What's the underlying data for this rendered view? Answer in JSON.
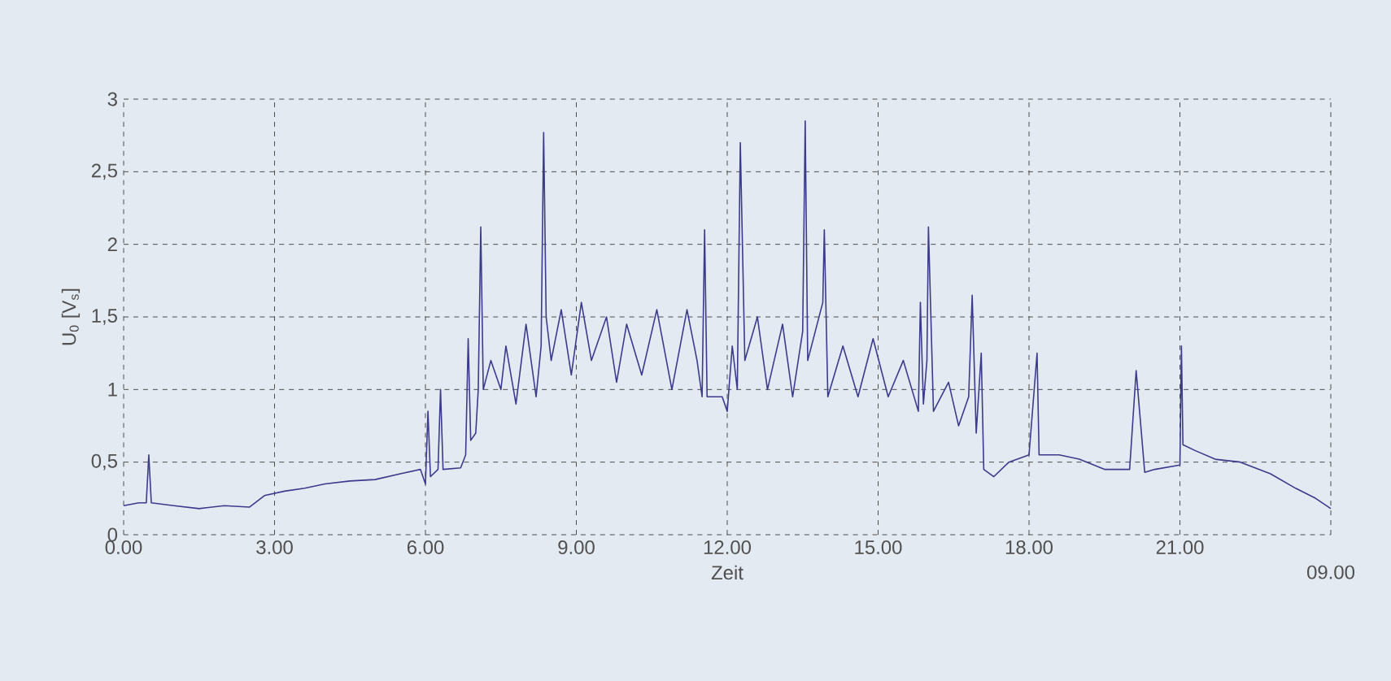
{
  "chart_data": {
    "type": "line",
    "xlabel": "Zeit",
    "ylabel": "U$_{0}$ [V$_{s}$]",
    "xlim": [
      0,
      24
    ],
    "ylim": [
      0,
      3
    ],
    "xticks": [
      {
        "value": 0,
        "label": "0.00"
      },
      {
        "value": 3,
        "label": "3.00"
      },
      {
        "value": 6,
        "label": "6.00"
      },
      {
        "value": 9,
        "label": "9.00"
      },
      {
        "value": 12,
        "label": "12.00"
      },
      {
        "value": 15,
        "label": "15.00"
      },
      {
        "value": 18,
        "label": "18.00"
      },
      {
        "value": 21,
        "label": "21.00"
      },
      {
        "value": 24,
        "label": null
      }
    ],
    "annotations": [
      "09.00"
    ],
    "yticks": [
      0,
      {
        "value": 0.5,
        "label": "0,5"
      },
      1,
      {
        "value": 1.5,
        "label": "1,5"
      },
      2,
      {
        "value": 2.5,
        "label": "2,5"
      },
      3
    ],
    "grid": true,
    "line_style": "solid",
    "series": [
      {
        "color": "#3c3a8c",
        "x": [
          0.0,
          0.3,
          0.45,
          0.5,
          0.55,
          1.0,
          1.5,
          2.0,
          2.5,
          2.8,
          3.2,
          3.6,
          4.0,
          4.5,
          5.0,
          5.5,
          5.9,
          6.0,
          6.05,
          6.1,
          6.25,
          6.3,
          6.35,
          6.7,
          6.8,
          6.85,
          6.9,
          7.0,
          7.05,
          7.1,
          7.15,
          7.3,
          7.5,
          7.6,
          7.8,
          8.0,
          8.2,
          8.3,
          8.35,
          8.4,
          8.5,
          8.7,
          8.9,
          9.1,
          9.3,
          9.6,
          9.8,
          10.0,
          10.3,
          10.6,
          10.9,
          11.2,
          11.4,
          11.5,
          11.55,
          11.6,
          11.9,
          12.0,
          12.1,
          12.2,
          12.26,
          12.35,
          12.6,
          12.8,
          13.1,
          13.3,
          13.5,
          13.55,
          13.6,
          13.9,
          13.93,
          14.0,
          14.3,
          14.6,
          14.9,
          15.2,
          15.5,
          15.8,
          15.84,
          15.9,
          15.97,
          16.0,
          16.1,
          16.4,
          16.6,
          16.8,
          16.87,
          16.95,
          17.05,
          17.1,
          17.3,
          17.6,
          18.0,
          18.16,
          18.2,
          18.6,
          19.0,
          19.5,
          20.0,
          20.13,
          20.3,
          20.5,
          21.0,
          21.03,
          21.06,
          21.3,
          21.7,
          22.2,
          22.8,
          23.3,
          23.7,
          24.0
        ],
        "values": [
          0.2,
          0.22,
          0.22,
          0.55,
          0.22,
          0.2,
          0.18,
          0.2,
          0.19,
          0.27,
          0.3,
          0.32,
          0.35,
          0.37,
          0.38,
          0.42,
          0.45,
          0.35,
          0.85,
          0.4,
          0.45,
          1.0,
          0.45,
          0.46,
          0.55,
          1.35,
          0.65,
          0.7,
          1.0,
          2.12,
          1.0,
          1.2,
          1.0,
          1.3,
          0.9,
          1.45,
          0.95,
          1.3,
          2.77,
          1.5,
          1.2,
          1.55,
          1.1,
          1.6,
          1.2,
          1.5,
          1.05,
          1.45,
          1.1,
          1.55,
          1.0,
          1.55,
          1.2,
          0.95,
          2.1,
          0.95,
          0.95,
          0.85,
          1.3,
          1.0,
          2.7,
          1.2,
          1.5,
          1.0,
          1.45,
          0.95,
          1.4,
          2.85,
          1.2,
          1.6,
          2.1,
          0.95,
          1.3,
          0.95,
          1.35,
          0.95,
          1.2,
          0.85,
          1.6,
          0.9,
          1.2,
          2.12,
          0.85,
          1.05,
          0.75,
          0.95,
          1.65,
          0.7,
          1.25,
          0.45,
          0.4,
          0.5,
          0.55,
          1.25,
          0.55,
          0.55,
          0.52,
          0.45,
          0.45,
          1.13,
          0.43,
          0.45,
          0.48,
          1.3,
          0.62,
          0.58,
          0.52,
          0.5,
          0.42,
          0.32,
          0.25,
          0.18
        ]
      }
    ]
  }
}
